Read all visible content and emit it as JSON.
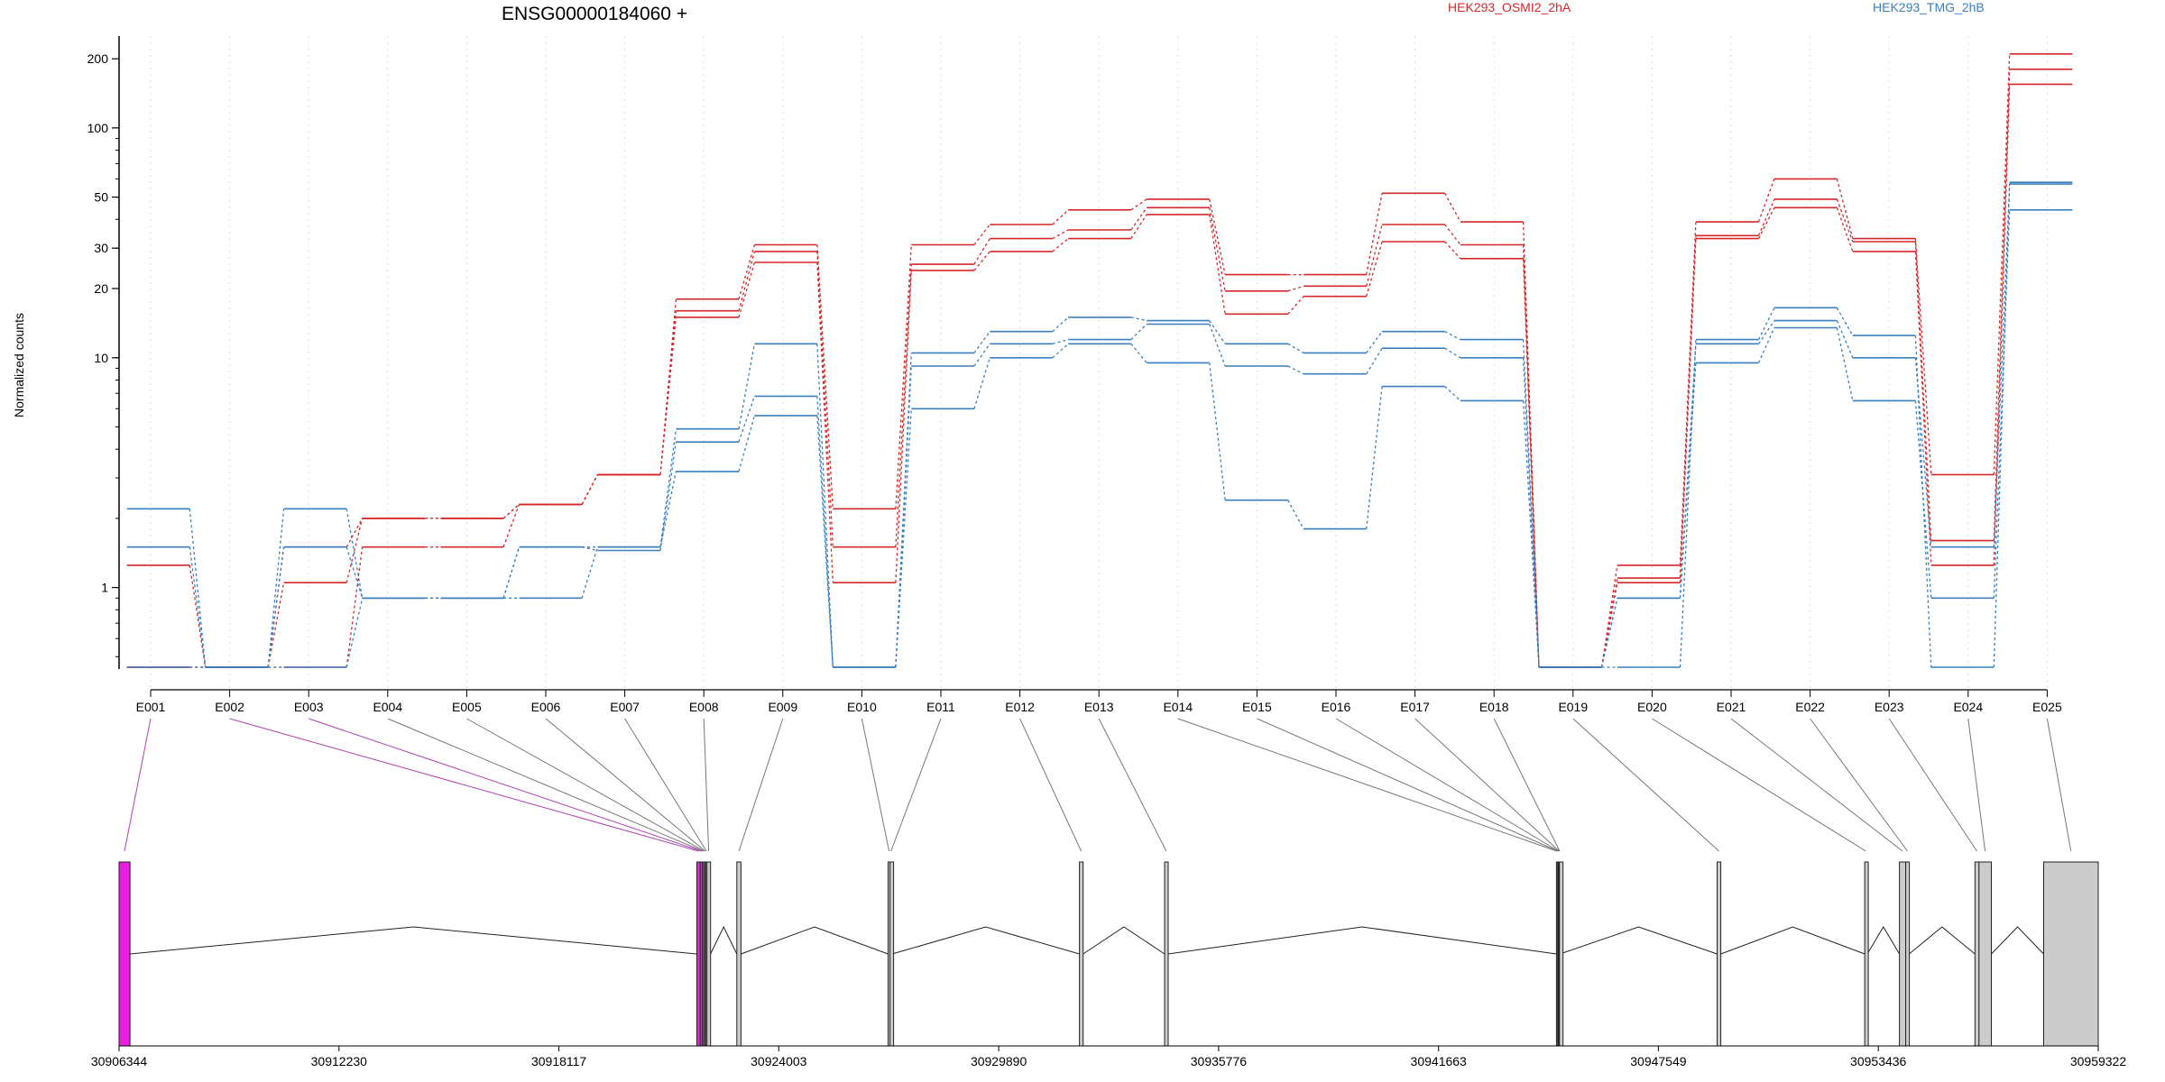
{
  "chart_data": {
    "type": "line",
    "title": "ENSG00000184060 +",
    "ylabel": "Normalized counts",
    "yscale": "log",
    "ylim": [
      0.45,
      240
    ],
    "yticks": [
      {
        "value": 1,
        "label": "1"
      },
      {
        "value": 10,
        "label": "10"
      },
      {
        "value": 20,
        "label": "20"
      },
      {
        "value": 30,
        "label": "30"
      },
      {
        "value": 50,
        "label": "50"
      },
      {
        "value": 100,
        "label": "100"
      },
      {
        "value": 200,
        "label": "200"
      }
    ],
    "categories": [
      "E001",
      "E002",
      "E003",
      "E004",
      "E005",
      "E006",
      "E007",
      "E008",
      "E009",
      "E010",
      "E011",
      "E012",
      "E013",
      "E014",
      "E015",
      "E016",
      "E017",
      "E018",
      "E019",
      "E020",
      "E021",
      "E022",
      "E023",
      "E024",
      "E025"
    ],
    "colors": {
      "HEK293_OSMI2_2hA": "#d62728",
      "HEK293_TMG_2hB": "#3a7fbf",
      "highlight": "#e81ee0",
      "exon_fill": "#cccccc"
    },
    "legend": [
      {
        "name": "HEK293_OSMI2_2hA",
        "color": "#d62728",
        "position": "top-center-right"
      },
      {
        "name": "HEK293_TMG_2hB",
        "color": "#3a7fbf",
        "position": "top-right"
      }
    ],
    "series": [
      {
        "name": "HEK293_OSMI2_2hA",
        "color": "#d62728",
        "values": [
          0.4,
          0.4,
          0.4,
          1.5,
          1.5,
          2.3,
          3.1,
          15,
          26,
          1.05,
          24,
          29,
          33,
          42,
          15.5,
          18.5,
          32,
          27,
          0.4,
          1.05,
          33,
          45,
          29,
          1.25,
          155
        ]
      },
      {
        "name": "HEK293_OSMI2_2hA",
        "color": "#d62728",
        "values": [
          1.25,
          0.4,
          1.05,
          2.0,
          2.0,
          2.3,
          3.1,
          16,
          29,
          1.5,
          25.5,
          33,
          36,
          45,
          19.5,
          20.5,
          38,
          31,
          0.4,
          1.1,
          34,
          49,
          32,
          1.6,
          180
        ]
      },
      {
        "name": "HEK293_OSMI2_2hA",
        "color": "#d62728",
        "values": [
          0.4,
          0.4,
          1.5,
          2.0,
          2.0,
          2.3,
          3.1,
          18,
          31,
          2.2,
          31,
          38,
          44,
          49,
          23,
          23,
          52,
          39,
          0.4,
          1.25,
          39,
          60,
          33,
          3.1,
          210
        ]
      },
      {
        "name": "HEK293_TMG_2hB",
        "color": "#3a7fbf",
        "values": [
          2.2,
          0.4,
          2.2,
          0.9,
          0.9,
          0.9,
          1.5,
          3.2,
          5.6,
          0.4,
          6.0,
          10,
          11.5,
          9.5,
          2.4,
          1.8,
          7.5,
          6.5,
          0.4,
          0.9,
          9.5,
          13.5,
          6.5,
          0.9,
          44
        ]
      },
      {
        "name": "HEK293_TMG_2hB",
        "color": "#3a7fbf",
        "values": [
          1.5,
          0.4,
          1.5,
          0.9,
          0.9,
          1.5,
          1.45,
          4.3,
          6.8,
          0.4,
          9.2,
          11.5,
          12,
          14,
          9.2,
          8.5,
          11,
          10,
          0.4,
          0.9,
          11.5,
          14.5,
          10,
          1.5,
          57
        ]
      },
      {
        "name": "HEK293_TMG_2hB",
        "color": "#3a7fbf",
        "values": [
          0.4,
          0.4,
          0.4,
          0.9,
          0.9,
          1.5,
          1.5,
          4.9,
          11.5,
          0.4,
          10.5,
          13,
          15,
          14.5,
          11.5,
          10.5,
          13,
          12,
          0.4,
          0.4,
          12,
          16.5,
          12.5,
          0.4,
          58
        ]
      }
    ],
    "gene_model": {
      "positions": [
        "30906344",
        "30912230",
        "30918117",
        "30924003",
        "30929890",
        "30935776",
        "30941663",
        "30947549",
        "30953436",
        "30959322"
      ],
      "range": [
        30906344,
        30959322
      ],
      "exons": [
        {
          "id": "E001",
          "start": 30906344,
          "end": 30906635,
          "highlight": true
        },
        {
          "id": "E002",
          "start": 30921810,
          "end": 30921900,
          "highlight": true
        },
        {
          "id": "E003",
          "start": 30921900,
          "end": 30921960,
          "highlight": true
        },
        {
          "id": "E004",
          "start": 30921960,
          "end": 30921990
        },
        {
          "id": "E005",
          "start": 30921990,
          "end": 30922020
        },
        {
          "id": "E006",
          "start": 30922020,
          "end": 30922050
        },
        {
          "id": "E007",
          "start": 30922050,
          "end": 30922080
        },
        {
          "id": "E008",
          "start": 30922080,
          "end": 30922175
        },
        {
          "id": "E009",
          "start": 30922880,
          "end": 30922990
        },
        {
          "id": "E010",
          "start": 30926930,
          "end": 30926980
        },
        {
          "id": "E011",
          "start": 30926980,
          "end": 30927035
        },
        {
          "id": "E012",
          "start": 30932050,
          "end": 30932150
        },
        {
          "id": "E013",
          "start": 30934330,
          "end": 30934420
        },
        {
          "id": "E014",
          "start": 30944820,
          "end": 30944850
        },
        {
          "id": "E015",
          "start": 30944850,
          "end": 30944870
        },
        {
          "id": "E016",
          "start": 30944870,
          "end": 30944890
        },
        {
          "id": "E017",
          "start": 30944890,
          "end": 30944900
        },
        {
          "id": "E018",
          "start": 30944900,
          "end": 30944915
        },
        {
          "id": "E019",
          "start": 30949120,
          "end": 30949220
        },
        {
          "id": "E020",
          "start": 30953070,
          "end": 30953140
        },
        {
          "id": "E021",
          "start": 30954000,
          "end": 30954170
        },
        {
          "id": "E022",
          "start": 30954170,
          "end": 30954260
        },
        {
          "id": "E023",
          "start": 30956020,
          "end": 30956130
        },
        {
          "id": "E024",
          "start": 30956130,
          "end": 30956460
        },
        {
          "id": "E025",
          "start": 30957860,
          "end": 30959322
        }
      ]
    }
  }
}
